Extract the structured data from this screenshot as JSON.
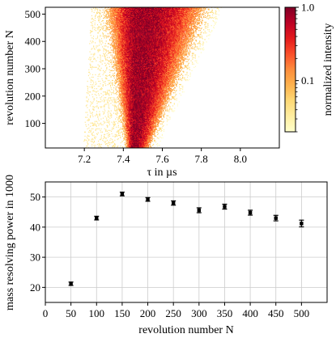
{
  "chart_data": [
    {
      "type": "heatmap",
      "title": "",
      "xlabel": "τ in µs",
      "ylabel": "revolution number N",
      "xlim": [
        7.0,
        8.2
      ],
      "ylim": [
        10,
        525
      ],
      "x_ticks": [
        "7.2",
        "7.4",
        "7.6",
        "7.8",
        "8.0"
      ],
      "x_tick_values": [
        7.2,
        7.4,
        7.6,
        7.8,
        8.0
      ],
      "y_ticks": [
        "100",
        "200",
        "300",
        "400",
        "500"
      ],
      "y_tick_values": [
        100,
        200,
        300,
        400,
        500
      ],
      "colorbar": {
        "label": "normalized intensity",
        "scale": "log",
        "range": [
          0.02,
          1.0
        ],
        "tick_labels": [
          "1.0",
          "0.1"
        ],
        "tick_values": [
          1.0,
          0.1
        ],
        "colormap": [
          "#ffffcc",
          "#ffeda0",
          "#fed976",
          "#feb24c",
          "#fd8d3c",
          "#fc4e2a",
          "#e31a1c",
          "#bd0026",
          "#800026"
        ]
      },
      "peak_center": [
        {
          "N": 20,
          "tau": 7.455
        },
        {
          "N": 100,
          "tau": 7.462
        },
        {
          "N": 200,
          "tau": 7.47
        },
        {
          "N": 300,
          "tau": 7.478
        },
        {
          "N": 400,
          "tau": 7.486
        },
        {
          "N": 525,
          "tau": 7.495
        }
      ],
      "peak_width": [
        {
          "N": 20,
          "sigma": 0.018
        },
        {
          "N": 525,
          "sigma": 0.075
        }
      ],
      "grid": false
    },
    {
      "type": "scatter",
      "title": "",
      "xlabel": "revolution number N",
      "ylabel": "mass resolving power in 1000",
      "xlim": [
        0,
        550
      ],
      "ylim": [
        15,
        55
      ],
      "x_ticks": [
        "0",
        "50",
        "100",
        "150",
        "200",
        "250",
        "300",
        "350",
        "400",
        "450",
        "500"
      ],
      "x_tick_values": [
        0,
        50,
        100,
        150,
        200,
        250,
        300,
        350,
        400,
        450,
        500
      ],
      "y_ticks": [
        "20",
        "30",
        "40",
        "50"
      ],
      "y_tick_values": [
        20,
        30,
        40,
        50
      ],
      "x": [
        50,
        100,
        150,
        200,
        250,
        300,
        350,
        400,
        450,
        500
      ],
      "y": [
        21.2,
        43.0,
        51.0,
        49.2,
        48.0,
        45.6,
        46.8,
        44.8,
        43.0,
        41.2
      ],
      "yerr": [
        0.35,
        0.4,
        0.4,
        0.4,
        0.5,
        0.6,
        0.6,
        0.6,
        0.7,
        0.9
      ],
      "grid": true
    }
  ]
}
